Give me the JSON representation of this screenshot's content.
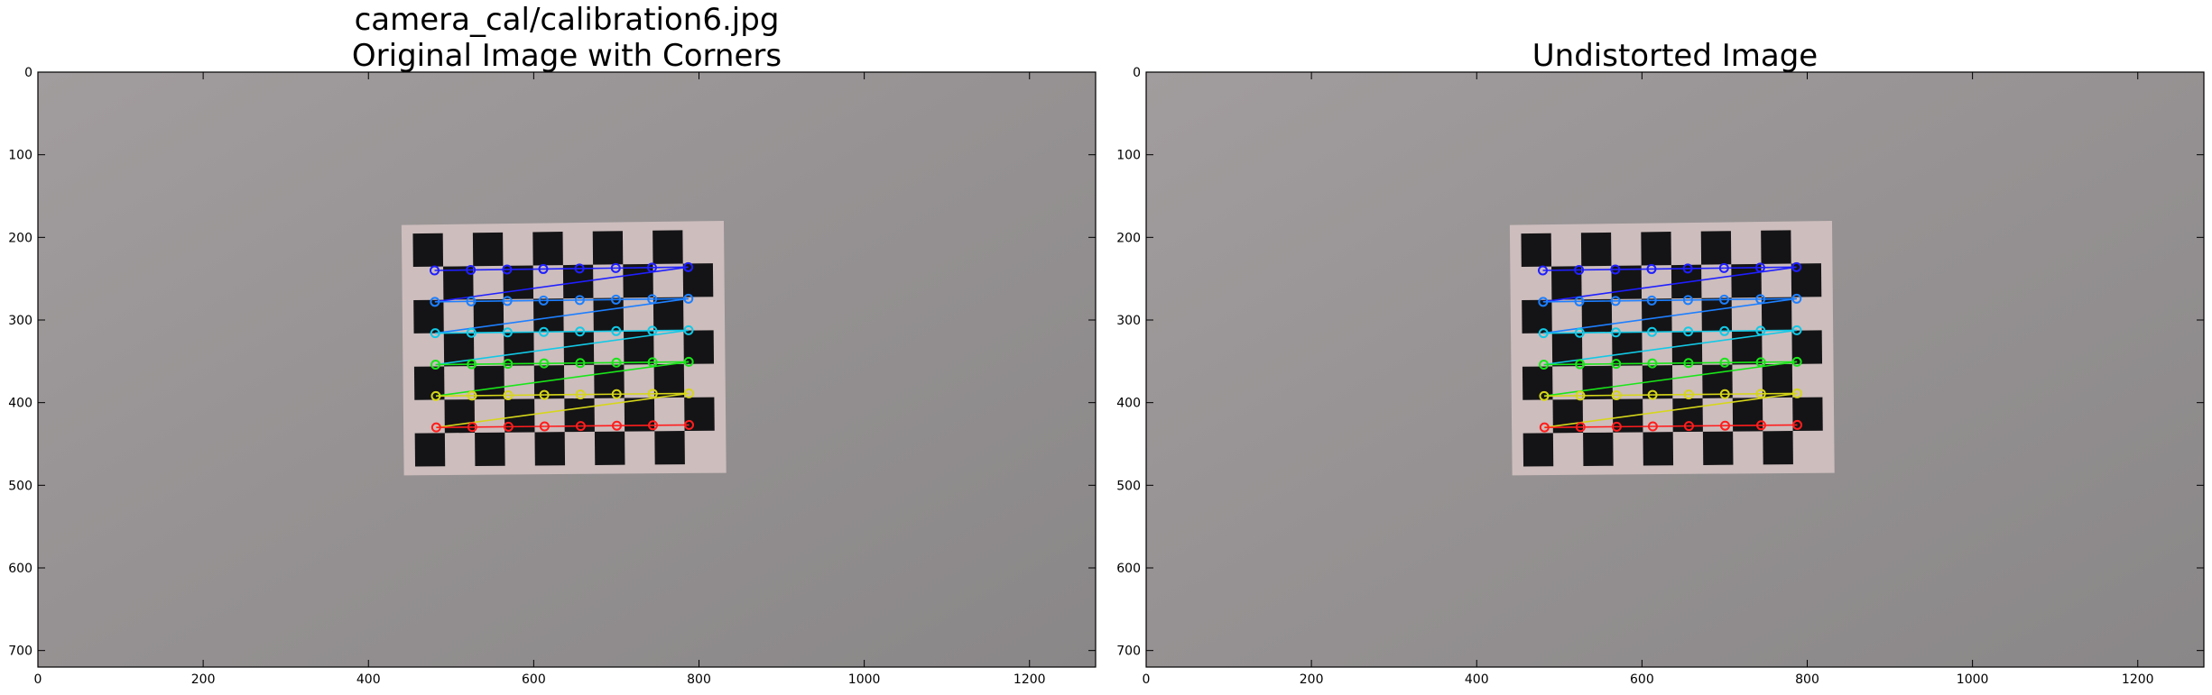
{
  "panels": [
    {
      "title_line1": "camera_cal/calibration6.jpg",
      "title_line2": "Original Image with Corners",
      "show_corners": true
    },
    {
      "title_line1": "",
      "title_line2": "Undistorted Image",
      "show_corners": true
    }
  ],
  "axes": {
    "x_ticks": [
      0,
      200,
      400,
      600,
      800,
      1000,
      1200
    ],
    "y_ticks": [
      0,
      100,
      200,
      300,
      400,
      500,
      600,
      700
    ],
    "xlim": [
      0,
      1280
    ],
    "ylim": [
      720,
      0
    ]
  },
  "scene": {
    "wall_color": "#a19c9d",
    "wall_color_dark": "#8a8788",
    "paper_color": "#cdbdbd",
    "square_color": "#141416",
    "paper_corners": [
      [
        440,
        185
      ],
      [
        830,
        180
      ],
      [
        833,
        485
      ],
      [
        443,
        488
      ]
    ],
    "board_cols": 10,
    "board_rows": 7
  },
  "corners": {
    "cols": 8,
    "rows": 6,
    "top_left": [
      480,
      240
    ],
    "top_right": [
      787,
      236
    ],
    "bottom_left": [
      482,
      430
    ],
    "bottom_right": [
      788,
      427
    ],
    "row_colors": [
      "#1f1fff",
      "#1d7fff",
      "#12c9e6",
      "#19e619",
      "#d6d61a",
      "#ff1d1d"
    ]
  }
}
